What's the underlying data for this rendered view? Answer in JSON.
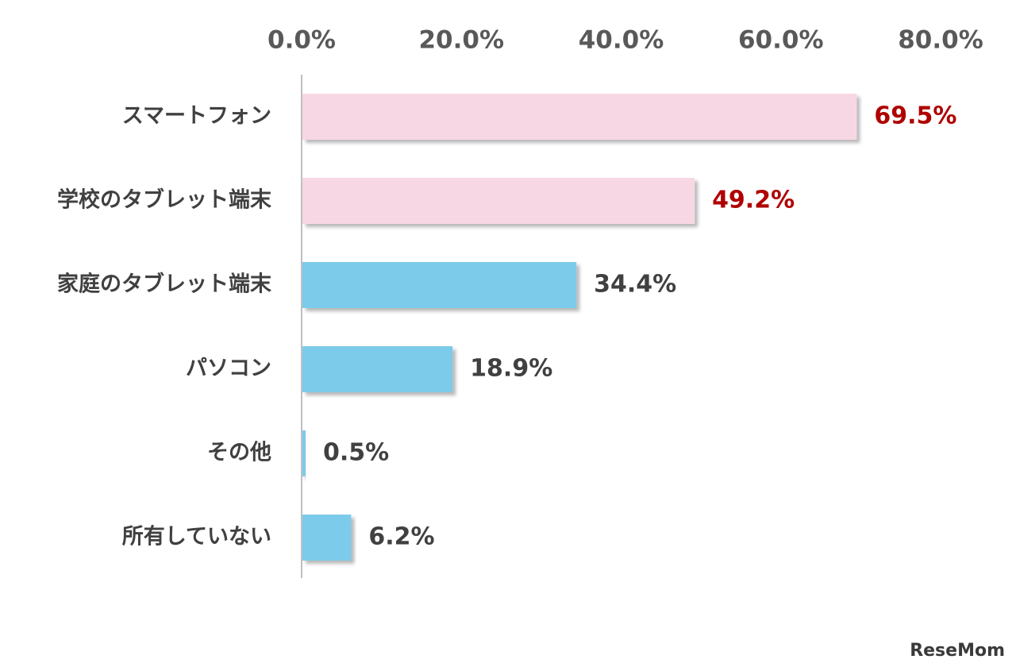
{
  "chart_data": {
    "type": "bar",
    "orientation": "horizontal",
    "categories": [
      "スマートフォン",
      "学校のタブレット端末",
      "家庭のタブレット端末",
      "パソコン",
      "その他",
      "所有していない"
    ],
    "values": [
      69.5,
      49.2,
      34.4,
      18.9,
      0.5,
      6.2
    ],
    "data_labels": [
      "69.5%",
      "49.2%",
      "34.4%",
      "18.9%",
      "0.5%",
      "6.2%"
    ],
    "bar_colors": [
      "#f8d7e4",
      "#f8d7e4",
      "#7ccbea",
      "#7ccbea",
      "#7ccbea",
      "#7ccbea"
    ],
    "label_colors": [
      "#b00000",
      "#b00000",
      "#404040",
      "#404040",
      "#404040",
      "#404040"
    ],
    "xlim": [
      0,
      80
    ],
    "x_ticks": [
      0,
      20,
      40,
      60,
      80
    ],
    "x_tick_labels": [
      "0.0%",
      "20.0%",
      "40.0%",
      "60.0%",
      "80.0%"
    ],
    "x_axis_position": "top",
    "grid": false,
    "legend": "none",
    "title": "",
    "xlabel": "",
    "ylabel": ""
  },
  "watermark": "ReseMom"
}
